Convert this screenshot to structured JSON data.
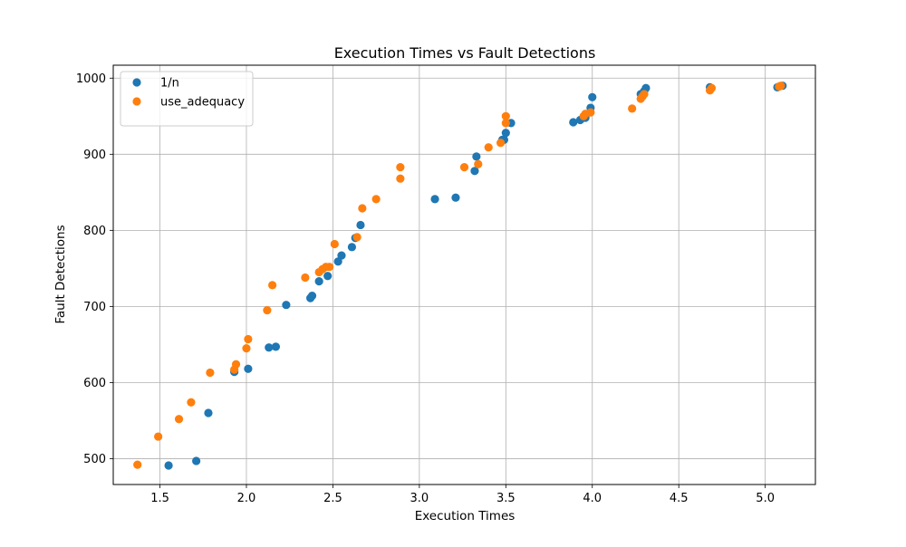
{
  "chart_data": {
    "type": "scatter",
    "title": "Execution Times vs Fault Detections",
    "xlabel": "Execution Times",
    "ylabel": "Fault Detections",
    "xlim": [
      1.23,
      5.29
    ],
    "ylim": [
      466,
      1017
    ],
    "xticks": [
      1.5,
      2.0,
      2.5,
      3.0,
      3.5,
      4.0,
      4.5,
      5.0
    ],
    "xtick_labels": [
      "1.5",
      "2.0",
      "2.5",
      "3.0",
      "3.5",
      "4.0",
      "4.5",
      "5.0"
    ],
    "yticks": [
      500,
      600,
      700,
      800,
      900,
      1000
    ],
    "ytick_labels": [
      "500",
      "600",
      "700",
      "800",
      "900",
      "1000"
    ],
    "grid": true,
    "legend_position": "top-left",
    "series": [
      {
        "name": "1/n",
        "color": "#1f77b4",
        "points": [
          [
            1.55,
            491
          ],
          [
            1.71,
            497
          ],
          [
            1.78,
            560
          ],
          [
            1.93,
            614
          ],
          [
            2.01,
            618
          ],
          [
            2.13,
            646
          ],
          [
            2.17,
            647
          ],
          [
            2.23,
            702
          ],
          [
            2.37,
            711
          ],
          [
            2.38,
            714
          ],
          [
            2.42,
            733
          ],
          [
            2.47,
            740
          ],
          [
            2.53,
            759
          ],
          [
            2.55,
            767
          ],
          [
            2.61,
            778
          ],
          [
            2.63,
            790
          ],
          [
            2.66,
            807
          ],
          [
            3.09,
            841
          ],
          [
            3.21,
            843
          ],
          [
            3.32,
            878
          ],
          [
            3.33,
            897
          ],
          [
            3.48,
            919
          ],
          [
            3.49,
            919
          ],
          [
            3.5,
            928
          ],
          [
            3.53,
            941
          ],
          [
            3.89,
            942
          ],
          [
            3.93,
            945
          ],
          [
            3.96,
            948
          ],
          [
            3.99,
            961
          ],
          [
            4.0,
            975
          ],
          [
            4.28,
            979
          ],
          [
            4.29,
            980
          ],
          [
            4.3,
            983
          ],
          [
            4.31,
            987
          ],
          [
            4.68,
            988
          ],
          [
            5.07,
            988
          ],
          [
            5.1,
            990
          ]
        ]
      },
      {
        "name": "use_adequacy",
        "color": "#ff7f0e",
        "points": [
          [
            1.37,
            492
          ],
          [
            1.49,
            529
          ],
          [
            1.61,
            552
          ],
          [
            1.68,
            574
          ],
          [
            1.79,
            613
          ],
          [
            1.93,
            617
          ],
          [
            1.94,
            624
          ],
          [
            2.0,
            645
          ],
          [
            2.01,
            657
          ],
          [
            2.12,
            695
          ],
          [
            2.15,
            728
          ],
          [
            2.34,
            738
          ],
          [
            2.42,
            745
          ],
          [
            2.44,
            749
          ],
          [
            2.46,
            752
          ],
          [
            2.48,
            752
          ],
          [
            2.51,
            782
          ],
          [
            2.64,
            791
          ],
          [
            2.67,
            829
          ],
          [
            2.75,
            841
          ],
          [
            2.89,
            868
          ],
          [
            2.89,
            883
          ],
          [
            3.26,
            883
          ],
          [
            3.34,
            887
          ],
          [
            3.4,
            909
          ],
          [
            3.47,
            915
          ],
          [
            3.5,
            941
          ],
          [
            3.5,
            950
          ],
          [
            3.95,
            950
          ],
          [
            3.96,
            953
          ],
          [
            3.99,
            955
          ],
          [
            4.23,
            960
          ],
          [
            4.28,
            973
          ],
          [
            4.29,
            976
          ],
          [
            4.3,
            979
          ],
          [
            4.68,
            984
          ],
          [
            4.69,
            987
          ],
          [
            5.08,
            989
          ],
          [
            5.09,
            990
          ]
        ]
      }
    ]
  }
}
